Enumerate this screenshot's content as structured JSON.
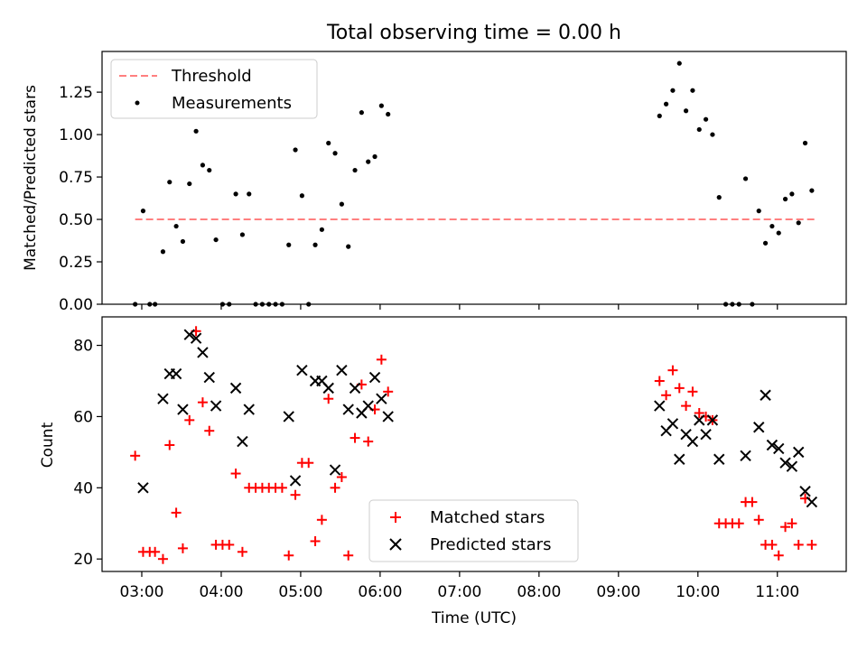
{
  "figure": {
    "title": "Total observing time = 0.00 h"
  },
  "chart_data": [
    {
      "type": "scatter",
      "title": "Total observing time = 0.00 h",
      "xlabel": "",
      "ylabel": "Matched/Predicted stars",
      "xlim": [
        "02:30",
        "11:52"
      ],
      "ylim": [
        0,
        1.49
      ],
      "yticks": [
        "0.00",
        "0.25",
        "0.50",
        "0.75",
        "1.00",
        "1.25"
      ],
      "grid": false,
      "legend_position": "top-left",
      "threshold": {
        "name": "Threshold",
        "value": 0.5,
        "x_range": [
          "02:55",
          "11:30"
        ],
        "color": "#ff7f7f",
        "style": "dashed"
      },
      "series": [
        {
          "name": "Measurements",
          "color": "#000000",
          "marker": "dot",
          "x": [
            "02:55",
            "03:01",
            "03:06",
            "03:10",
            "03:16",
            "03:21",
            "03:26",
            "03:31",
            "03:36",
            "03:41",
            "03:46",
            "03:51",
            "03:56",
            "04:01",
            "04:06",
            "04:11",
            "04:16",
            "04:21",
            "04:26",
            "04:31",
            "04:36",
            "04:41",
            "04:46",
            "04:51",
            "04:56",
            "05:01",
            "05:06",
            "05:11",
            "05:16",
            "05:21",
            "05:26",
            "05:31",
            "05:36",
            "05:41",
            "05:46",
            "05:51",
            "05:56",
            "06:01",
            "06:06",
            "09:31",
            "09:36",
            "09:41",
            "09:46",
            "09:51",
            "09:56",
            "10:01",
            "10:06",
            "10:11",
            "10:16",
            "10:21",
            "10:26",
            "10:31",
            "10:36",
            "10:41",
            "10:46",
            "10:51",
            "10:56",
            "11:01",
            "11:06",
            "11:11",
            "11:16",
            "11:21",
            "11:26"
          ],
          "y": [
            0.0,
            0.55,
            0.0,
            0.0,
            0.31,
            0.72,
            0.46,
            0.37,
            0.71,
            1.02,
            0.82,
            0.79,
            0.38,
            0.0,
            0.0,
            0.65,
            0.41,
            0.65,
            0.0,
            0.0,
            0.0,
            0.0,
            0.0,
            0.35,
            0.91,
            0.64,
            0.0,
            0.35,
            0.44,
            0.95,
            0.89,
            0.59,
            0.34,
            0.79,
            1.13,
            0.84,
            0.87,
            1.17,
            1.12,
            1.11,
            1.18,
            1.26,
            1.42,
            1.14,
            1.26,
            1.03,
            1.09,
            1.0,
            0.63,
            0.0,
            0.0,
            0.0,
            0.74,
            0.0,
            0.55,
            0.36,
            0.46,
            0.42,
            0.62,
            0.65,
            0.48,
            0.95,
            0.67
          ]
        }
      ]
    },
    {
      "type": "scatter",
      "title": "",
      "xlabel": "Time (UTC)",
      "ylabel": "Count",
      "xlim": [
        "02:30",
        "11:52"
      ],
      "ylim": [
        16.5,
        88
      ],
      "xticks": [
        "03:00",
        "04:00",
        "05:00",
        "06:00",
        "07:00",
        "08:00",
        "09:00",
        "10:00",
        "11:00"
      ],
      "yticks": [
        "20",
        "40",
        "60",
        "80"
      ],
      "grid": false,
      "legend_position": "lower-center",
      "x": [
        "02:55",
        "03:01",
        "03:06",
        "03:10",
        "03:16",
        "03:21",
        "03:26",
        "03:31",
        "03:36",
        "03:41",
        "03:46",
        "03:51",
        "03:56",
        "04:01",
        "04:06",
        "04:11",
        "04:16",
        "04:21",
        "04:26",
        "04:31",
        "04:36",
        "04:41",
        "04:46",
        "04:51",
        "04:56",
        "05:01",
        "05:06",
        "05:11",
        "05:16",
        "05:21",
        "05:26",
        "05:31",
        "05:36",
        "05:41",
        "05:46",
        "05:51",
        "05:56",
        "06:01",
        "06:06",
        "09:31",
        "09:36",
        "09:41",
        "09:46",
        "09:51",
        "09:56",
        "10:01",
        "10:06",
        "10:11",
        "10:16",
        "10:21",
        "10:26",
        "10:31",
        "10:36",
        "10:41",
        "10:46",
        "10:51",
        "10:56",
        "11:01",
        "11:06",
        "11:11",
        "11:16",
        "11:21",
        "11:26"
      ],
      "series": [
        {
          "name": "Matched stars",
          "color": "#ff0000",
          "marker": "plus",
          "y": [
            49,
            22,
            22,
            22,
            20,
            52,
            33,
            23,
            59,
            84,
            64,
            56,
            24,
            24,
            24,
            44,
            22,
            40,
            40,
            40,
            40,
            40,
            40,
            21,
            38,
            47,
            47,
            25,
            31,
            65,
            40,
            43,
            21,
            54,
            69,
            53,
            62,
            76,
            67,
            70,
            66,
            73,
            68,
            63,
            67,
            61,
            60,
            59,
            30,
            30,
            30,
            30,
            36,
            36,
            31,
            24,
            24,
            21,
            29,
            30,
            24,
            37,
            24
          ]
        },
        {
          "name": "Predicted stars",
          "color": "#000000",
          "marker": "x",
          "y": [
            null,
            40,
            null,
            null,
            65,
            72,
            72,
            62,
            83,
            82,
            78,
            71,
            63,
            null,
            null,
            68,
            53,
            62,
            null,
            null,
            null,
            null,
            null,
            60,
            42,
            73,
            null,
            70,
            70,
            68,
            45,
            73,
            62,
            68,
            61,
            63,
            71,
            65,
            60,
            63,
            56,
            58,
            48,
            55,
            53,
            59,
            55,
            59,
            48,
            null,
            null,
            null,
            49,
            null,
            57,
            66,
            52,
            51,
            47,
            46,
            50,
            39,
            36
          ]
        }
      ]
    }
  ]
}
